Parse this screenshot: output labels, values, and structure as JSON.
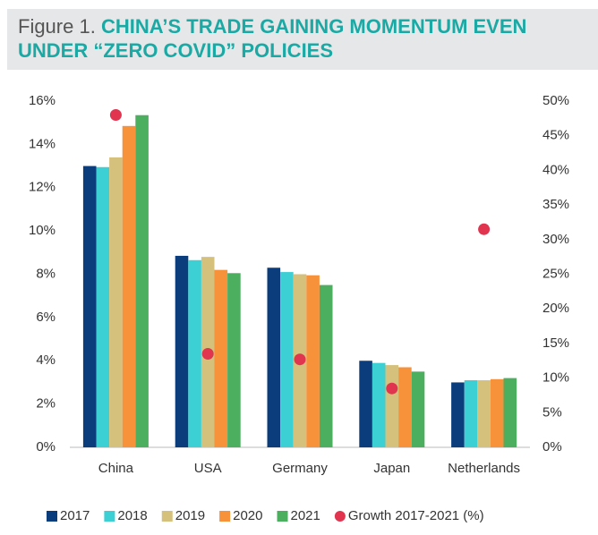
{
  "chart_data": {
    "type": "bar",
    "title_prefix": "Figure 1.",
    "title": "CHINA’S TRADE GAINING MOMENTUM EVEN UNDER “ZERO COVID” POLICIES",
    "categories": [
      "China",
      "USA",
      "Germany",
      "Japan",
      "Netherlands"
    ],
    "series": [
      {
        "name": "2017",
        "color": "#0b3d7c",
        "values": [
          13.0,
          8.85,
          8.3,
          4.0,
          3.0
        ]
      },
      {
        "name": "2018",
        "color": "#3ccfd3",
        "values": [
          12.95,
          8.65,
          8.1,
          3.9,
          3.1
        ]
      },
      {
        "name": "2019",
        "color": "#d5c07c",
        "values": [
          13.4,
          8.8,
          8.0,
          3.8,
          3.1
        ]
      },
      {
        "name": "2020",
        "color": "#f7913a",
        "values": [
          14.85,
          8.2,
          7.95,
          3.7,
          3.15
        ]
      },
      {
        "name": "2021",
        "color": "#4caf60",
        "values": [
          15.35,
          8.05,
          7.5,
          3.5,
          3.2
        ]
      },
      {
        "name": "Growth 2017-2021 (%)",
        "color": "#e0344f",
        "type": "scatter",
        "axis": "y2",
        "values": [
          48,
          13.5,
          12.7,
          8.5,
          31.5
        ]
      }
    ],
    "ylim": [
      0,
      16
    ],
    "yticks": [
      {
        "value": 0,
        "label": "0%"
      },
      {
        "value": 2,
        "label": "2%"
      },
      {
        "value": 4,
        "label": "4%"
      },
      {
        "value": 6,
        "label": "6%"
      },
      {
        "value": 8,
        "label": "8%"
      },
      {
        "value": 10,
        "label": "10%"
      },
      {
        "value": 12,
        "label": "12%"
      },
      {
        "value": 14,
        "label": "14%"
      },
      {
        "value": 16,
        "label": "16%"
      }
    ],
    "y2lim": [
      0,
      50
    ],
    "y2ticks": [
      {
        "value": 0,
        "label": "0%"
      },
      {
        "value": 5,
        "label": "5%"
      },
      {
        "value": 10,
        "label": "10%"
      },
      {
        "value": 15,
        "label": "15%"
      },
      {
        "value": 20,
        "label": "20%"
      },
      {
        "value": 25,
        "label": "25%"
      },
      {
        "value": 30,
        "label": "30%"
      },
      {
        "value": 35,
        "label": "35%"
      },
      {
        "value": 40,
        "label": "40%"
      },
      {
        "value": 45,
        "label": "45%"
      },
      {
        "value": 50,
        "label": "50%"
      }
    ],
    "grid": false,
    "legend": "bottom"
  }
}
